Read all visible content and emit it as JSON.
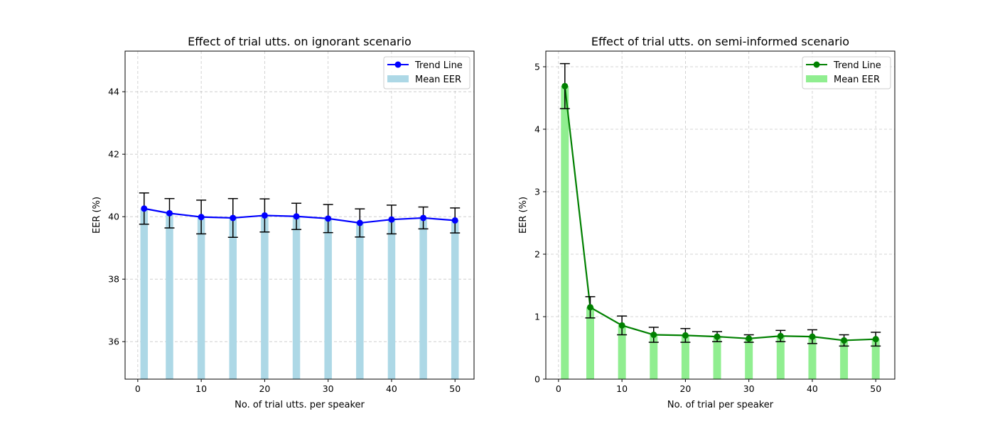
{
  "chart_data": [
    {
      "type": "bar",
      "title": "Effect of trial utts. on ignorant scenario",
      "xlabel": "No. of trial utts. per speaker",
      "ylabel": "EER (%)",
      "xlim": [
        -2,
        53
      ],
      "ylim": [
        34.8,
        45.3
      ],
      "xticks": [
        0,
        10,
        20,
        30,
        40,
        50
      ],
      "yticks": [
        36,
        38,
        40,
        42,
        44
      ],
      "grid": true,
      "legend_position": "top-right",
      "x": [
        1,
        5,
        10,
        15,
        20,
        25,
        30,
        35,
        40,
        45,
        50
      ],
      "series": [
        {
          "name": "Mean EER",
          "kind": "bar",
          "color": "#add8e6",
          "values": [
            40.26,
            40.11,
            39.99,
            39.96,
            40.04,
            40.01,
            39.94,
            39.8,
            39.91,
            39.96,
            39.88
          ]
        },
        {
          "name": "Trend Line",
          "kind": "line",
          "color": "#0000ff",
          "values": [
            40.26,
            40.11,
            39.99,
            39.96,
            40.04,
            40.01,
            39.94,
            39.8,
            39.91,
            39.96,
            39.88
          ],
          "error": [
            0.5,
            0.47,
            0.54,
            0.62,
            0.53,
            0.42,
            0.45,
            0.45,
            0.46,
            0.35,
            0.4
          ]
        }
      ]
    },
    {
      "type": "bar",
      "title": "Effect of trial utts. on semi-informed scenario",
      "xlabel": "No. of trial per speaker",
      "ylabel": "EER (%)",
      "xlim": [
        -2,
        53
      ],
      "ylim": [
        0,
        5.25
      ],
      "xticks": [
        0,
        10,
        20,
        30,
        40,
        50
      ],
      "yticks": [
        0,
        1,
        2,
        3,
        4,
        5
      ],
      "grid": true,
      "legend_position": "top-right",
      "x": [
        1,
        5,
        10,
        15,
        20,
        25,
        30,
        35,
        40,
        45,
        50
      ],
      "series": [
        {
          "name": "Mean EER",
          "kind": "bar",
          "color": "#90ee90",
          "values": [
            4.69,
            1.15,
            0.86,
            0.71,
            0.7,
            0.68,
            0.65,
            0.69,
            0.68,
            0.62,
            0.64
          ]
        },
        {
          "name": "Trend Line",
          "kind": "line",
          "color": "#008000",
          "values": [
            4.69,
            1.15,
            0.86,
            0.71,
            0.7,
            0.68,
            0.65,
            0.69,
            0.68,
            0.62,
            0.64
          ],
          "error": [
            0.36,
            0.17,
            0.15,
            0.12,
            0.11,
            0.08,
            0.06,
            0.09,
            0.11,
            0.09,
            0.11
          ]
        }
      ]
    }
  ]
}
